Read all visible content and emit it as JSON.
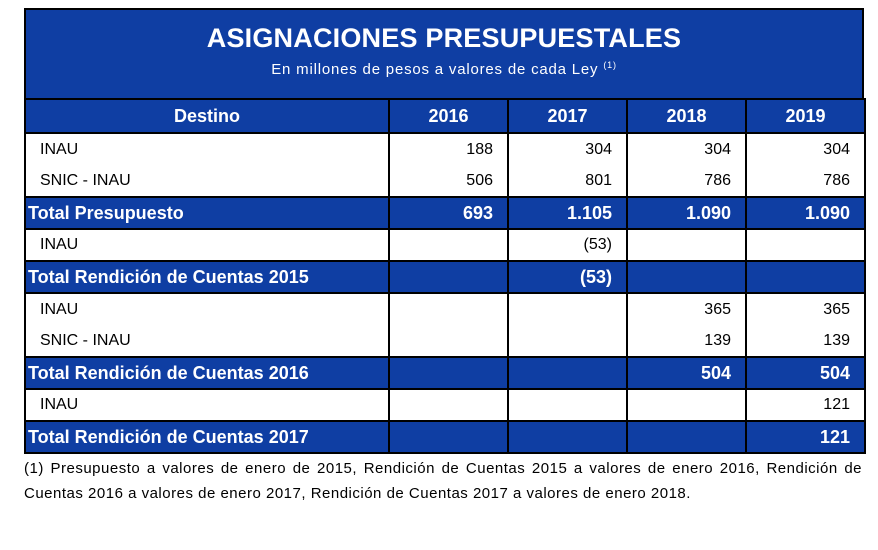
{
  "title": "ASIGNACIONES PRESUPUESTALES",
  "subtitle": "En millones de pesos a valores de cada Ley",
  "subtitle_note_ref": "(1)",
  "columns": [
    "Destino",
    "2016",
    "2017",
    "2018",
    "2019"
  ],
  "rows": [
    {
      "type": "item",
      "name": "INAU",
      "values": [
        "188",
        "304",
        "304",
        "304"
      ]
    },
    {
      "type": "item",
      "name": "SNIC - INAU",
      "values": [
        "506",
        "801",
        "786",
        "786"
      ]
    },
    {
      "type": "total",
      "name": "Total Presupuesto",
      "values": [
        "693",
        "1.105",
        "1.090",
        "1.090"
      ]
    },
    {
      "type": "item",
      "name": "INAU",
      "values": [
        "",
        "(53)",
        "",
        ""
      ]
    },
    {
      "type": "total",
      "name": "Total Rendición de Cuentas 2015",
      "values": [
        "",
        "(53)",
        "",
        ""
      ]
    },
    {
      "type": "item",
      "name": "INAU",
      "values": [
        "",
        "",
        "365",
        "365"
      ]
    },
    {
      "type": "item",
      "name": "SNIC - INAU",
      "values": [
        "",
        "",
        "139",
        "139"
      ]
    },
    {
      "type": "total",
      "name": "Total Rendición de Cuentas 2016",
      "values": [
        "",
        "",
        "504",
        "504"
      ]
    },
    {
      "type": "item",
      "name": "INAU",
      "values": [
        "",
        "",
        "",
        "121"
      ]
    },
    {
      "type": "total",
      "name": "Total Rendición de Cuentas 2017",
      "values": [
        "",
        "",
        "",
        "121"
      ]
    }
  ],
  "footnote": "(1) Presupuesto a valores de enero de 2015, Rendición de Cuentas 2015 a valores de enero 2016, Rendición de Cuentas 2016 a valores de enero 2017, Rendición de Cuentas 2017 a valores de enero 2018.",
  "colors": {
    "header_blue": "#0f3ea3",
    "text_white": "#ffffff"
  }
}
